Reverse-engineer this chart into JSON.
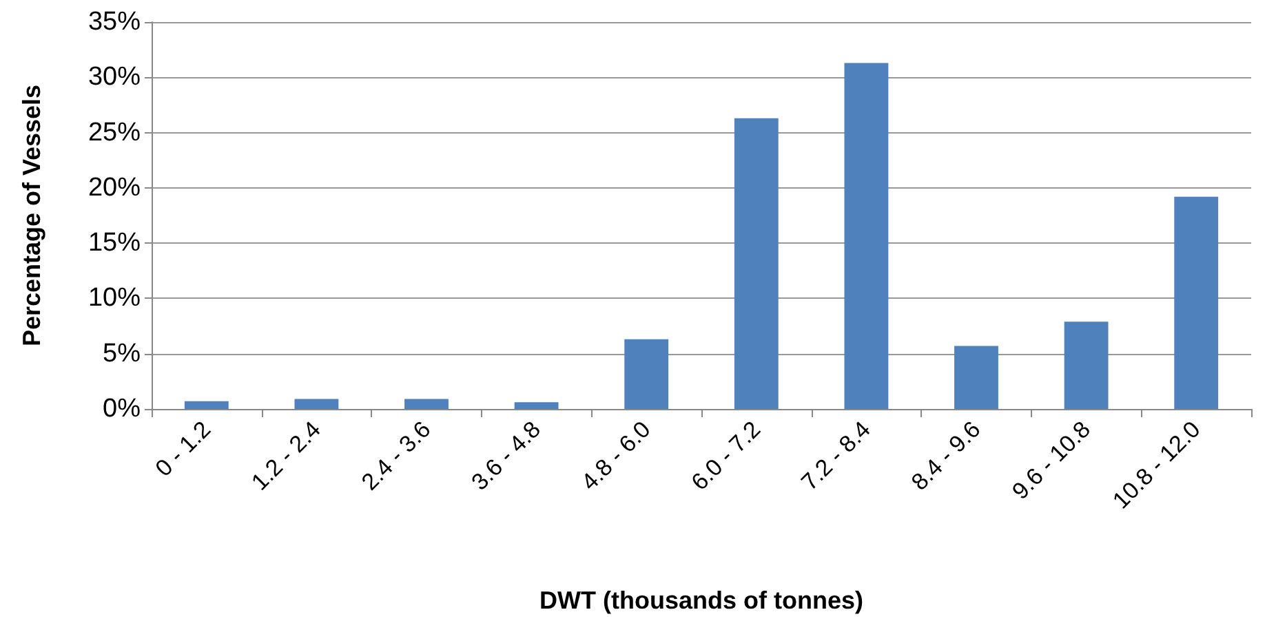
{
  "chart_data": {
    "type": "bar",
    "xlabel": "DWT (thousands of tonnes)",
    "ylabel": "Percentage of Vessels",
    "categories": [
      "0 - 1.2",
      "1.2 - 2.4",
      "2.4 - 3.6",
      "3.6 - 4.8",
      "4.8 - 6.0",
      "6.0 - 7.2",
      "7.2 - 8.4",
      "8.4 - 9.6",
      "9.6 - 10.8",
      "10.8 - 12.0"
    ],
    "values": [
      0.7,
      0.9,
      0.9,
      0.6,
      6.3,
      26.3,
      31.3,
      5.7,
      7.9,
      19.2
    ],
    "color": "#4f81bd",
    "ylim": [
      0,
      35
    ],
    "yticks": [
      {
        "value": 0,
        "label": "0%"
      },
      {
        "value": 5,
        "label": "5%"
      },
      {
        "value": 10,
        "label": "10%"
      },
      {
        "value": 15,
        "label": "15%"
      },
      {
        "value": 20,
        "label": "20%"
      },
      {
        "value": 25,
        "label": "25%"
      },
      {
        "value": 30,
        "label": "30%"
      },
      {
        "value": 35,
        "label": "35%"
      }
    ],
    "grid": "y"
  }
}
